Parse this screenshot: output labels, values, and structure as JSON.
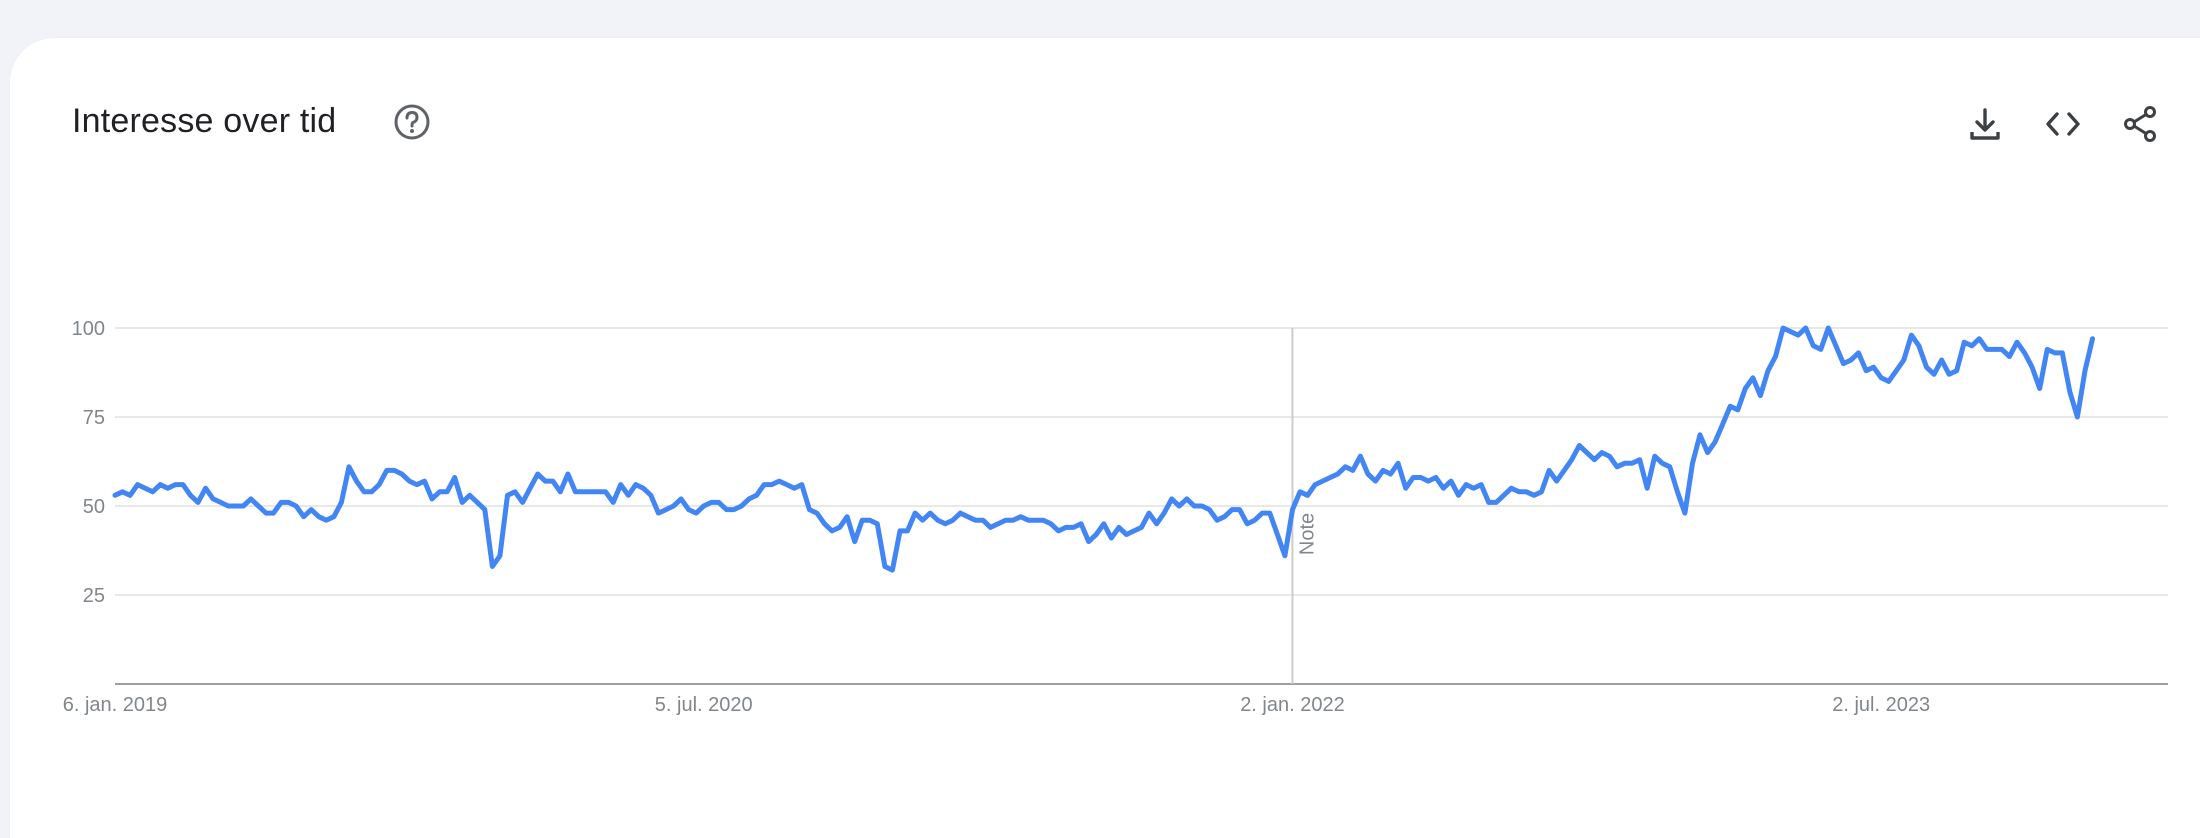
{
  "card": {
    "title": "Interesse over tid",
    "help_icon": "help-circle-icon",
    "toolbar": [
      {
        "name": "download-icon"
      },
      {
        "name": "embed-code-icon"
      },
      {
        "name": "share-icon"
      }
    ]
  },
  "colors": {
    "line": "#4285f4",
    "grid": "#e0e0e0",
    "axis": "#9aa0a6",
    "note_line": "#cccccc",
    "tick_text": "#80868b"
  },
  "chart_data": {
    "type": "line",
    "title": "",
    "xlabel": "",
    "ylabel": "",
    "ylim": [
      0,
      100
    ],
    "y_ticks": [
      25,
      50,
      75,
      100
    ],
    "x_tick_labels": [
      "6. jan. 2019",
      "5. jul. 2020",
      "2. jan. 2022",
      "2. jul. 2023"
    ],
    "x_range": [
      "2019-01-06",
      "2024-03-24"
    ],
    "annotations": [
      {
        "text": "Note",
        "x": "2022-01-02"
      }
    ],
    "grid": true,
    "legend": "none",
    "series": [
      {
        "start": "2019-01-06",
        "step_days": 7,
        "values": [
          53,
          54,
          53,
          56,
          55,
          54,
          56,
          55,
          56,
          56,
          53,
          51,
          55,
          52,
          51,
          50,
          50,
          50,
          52,
          50,
          48,
          48,
          51,
          51,
          50,
          47,
          49,
          47,
          46,
          47,
          51,
          61,
          57,
          54,
          54,
          56,
          60,
          60,
          59,
          57,
          56,
          57,
          52,
          54,
          54,
          58,
          51,
          53,
          51,
          49,
          33,
          36,
          53,
          54,
          51,
          55,
          59,
          57,
          57,
          54,
          59,
          54,
          54,
          54,
          54,
          54,
          51,
          56,
          53,
          56,
          55,
          53,
          48,
          49,
          50,
          52,
          49,
          48,
          50,
          51,
          51,
          49,
          49,
          50,
          52,
          53,
          56,
          56,
          57,
          56,
          55,
          56,
          49,
          48,
          45,
          43,
          44,
          47,
          40,
          46,
          46,
          45,
          33,
          32,
          43,
          43,
          48,
          46,
          48,
          46,
          45,
          46,
          48,
          47,
          46,
          46,
          44,
          45,
          46,
          46,
          47,
          46,
          46,
          46,
          45,
          43,
          44,
          44,
          45,
          40,
          42,
          45,
          41,
          44,
          42,
          43,
          44,
          48,
          45,
          48,
          52,
          50,
          52,
          50,
          50,
          49,
          46,
          47,
          49,
          49,
          45,
          46,
          48,
          48,
          42,
          36,
          49,
          54,
          53,
          56,
          57,
          58,
          59,
          61,
          60,
          64,
          59,
          57,
          60,
          59,
          62,
          55,
          58,
          58,
          57,
          58,
          55,
          57,
          53,
          56,
          55,
          56,
          51,
          51,
          53,
          55,
          54,
          54,
          53,
          54,
          60,
          57,
          60,
          63,
          67,
          65,
          63,
          65,
          64,
          61,
          62,
          62,
          63,
          55,
          64,
          62,
          61,
          54,
          48,
          62,
          70,
          65,
          68,
          73,
          78,
          77,
          83,
          86,
          81,
          88,
          92,
          100,
          99,
          98,
          100,
          95,
          94,
          100,
          95,
          90,
          91,
          93,
          88,
          89,
          86,
          85,
          88,
          91,
          98,
          95,
          89,
          87,
          91,
          87,
          88,
          96,
          95,
          97,
          94,
          94,
          94,
          92,
          96,
          93,
          89,
          83,
          94,
          93,
          93,
          82,
          75,
          88,
          97
        ]
      }
    ]
  }
}
